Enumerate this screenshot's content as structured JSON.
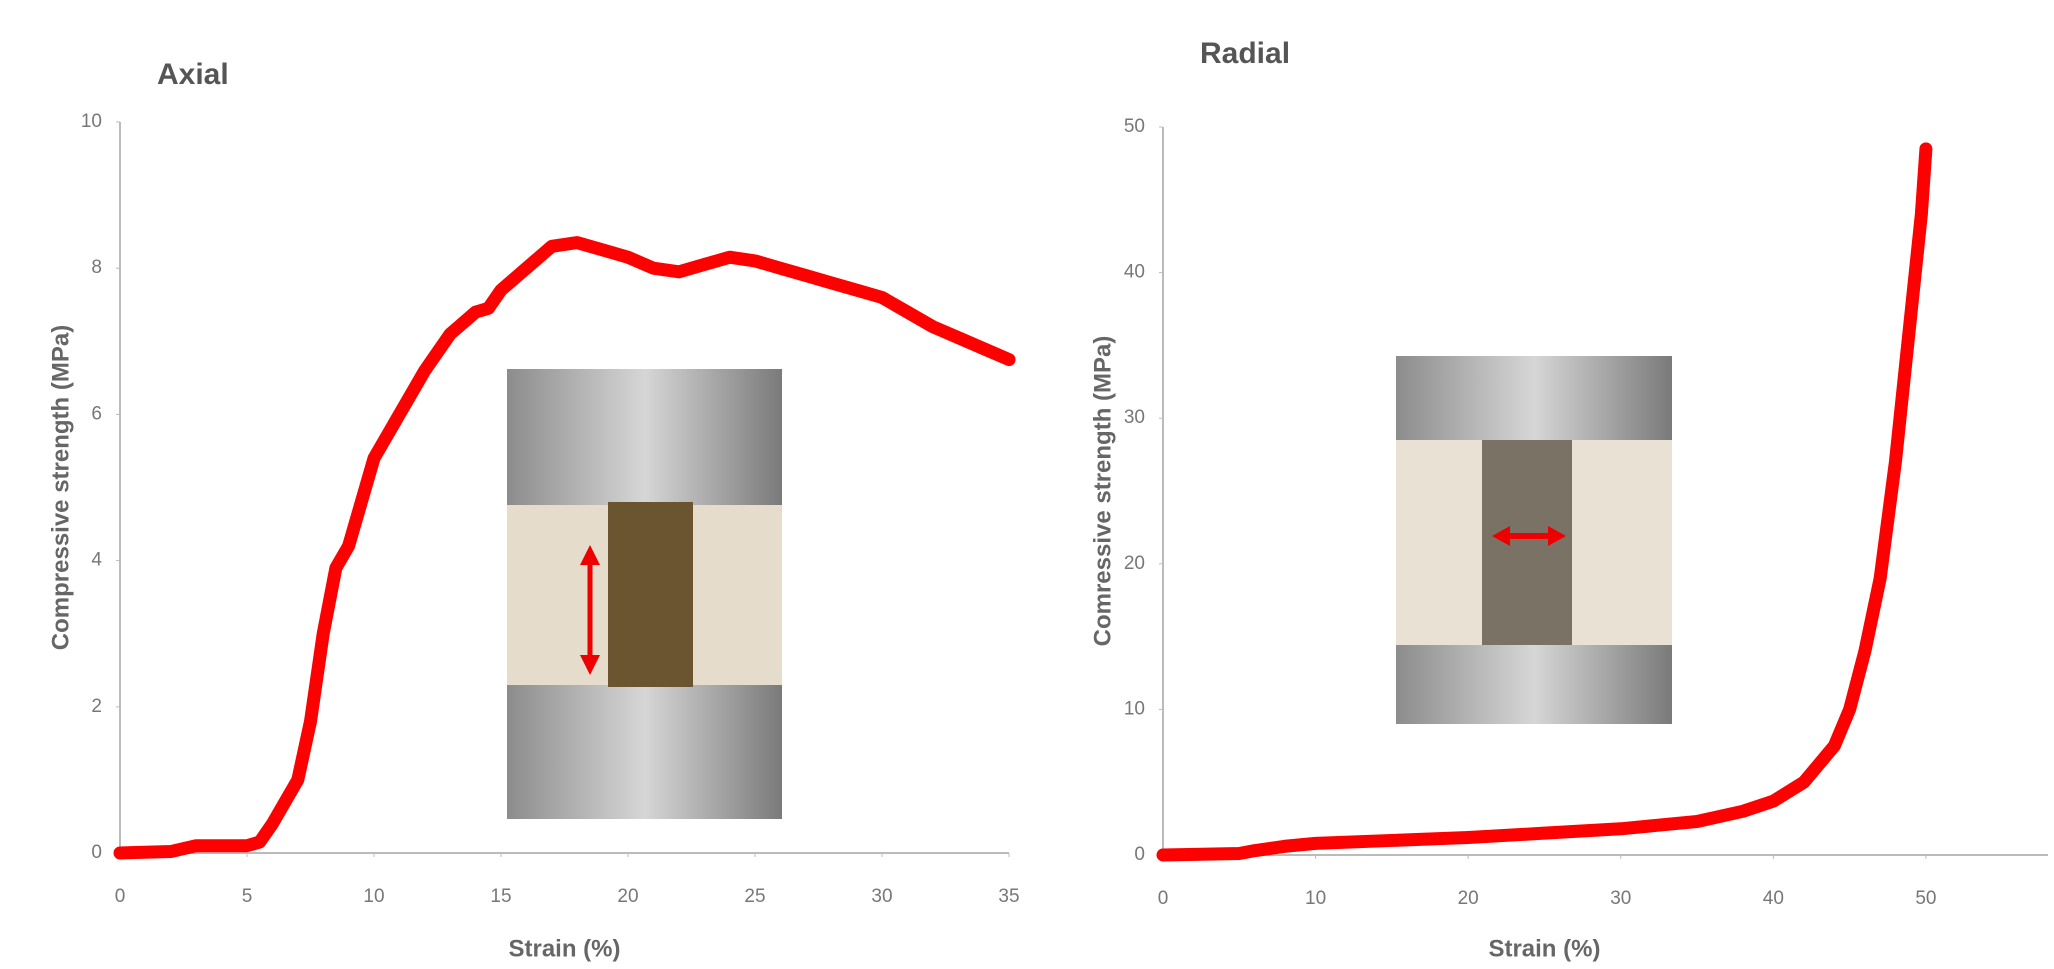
{
  "chart_data": [
    {
      "type": "line",
      "title": "Axial",
      "x_label": "Strain (%)",
      "y_label": "Compressive strength (MPa)",
      "x": [
        0,
        2,
        3,
        5,
        5.5,
        6,
        7,
        7.5,
        8,
        8.5,
        9,
        10,
        11,
        12,
        13,
        14,
        14.5,
        15,
        16,
        17,
        18,
        19,
        20,
        21,
        22,
        23,
        24,
        25,
        26,
        27,
        28,
        29,
        30,
        31,
        32,
        33,
        34,
        35
      ],
      "series": [
        {
          "color": "#ff0000",
          "values": [
            0,
            0.02,
            0.1,
            0.1,
            0.15,
            0.4,
            1.0,
            1.8,
            3.0,
            3.9,
            4.2,
            5.4,
            6.0,
            6.6,
            7.1,
            7.4,
            7.45,
            7.7,
            8.0,
            8.3,
            8.35,
            8.25,
            8.15,
            8.0,
            7.95,
            8.05,
            8.15,
            8.1,
            8.0,
            7.9,
            7.8,
            7.7,
            7.6,
            7.4,
            7.2,
            7.05,
            6.9,
            6.75
          ]
        }
      ],
      "xlim": [
        0,
        35
      ],
      "xticks": [
        0,
        5,
        10,
        15,
        20,
        25,
        30,
        35
      ],
      "ylim": [
        0,
        10
      ],
      "yticks": [
        0,
        2,
        4,
        6,
        8,
        10
      ],
      "grid": false
    },
    {
      "type": "line",
      "title": "Radial",
      "x_label": "Strain (%)",
      "y_label": "Comressive strength (MPa)",
      "x": [
        0,
        5,
        6,
        8,
        10,
        15,
        20,
        25,
        30,
        35,
        38,
        40,
        42,
        44,
        45,
        46,
        47,
        48,
        49,
        49.7,
        50
      ],
      "series": [
        {
          "color": "#ff0000",
          "values": [
            0,
            0.1,
            0.3,
            0.6,
            0.8,
            1.0,
            1.2,
            1.5,
            1.8,
            2.3,
            3.0,
            3.7,
            5.0,
            7.5,
            10,
            14,
            19,
            27,
            37,
            44,
            48.5
          ]
        }
      ],
      "xlim": [
        0,
        58
      ],
      "xticks": [
        0,
        10,
        20,
        30,
        40,
        50
      ],
      "ylim": [
        0,
        50
      ],
      "yticks": [
        0,
        10,
        20,
        30,
        40,
        50
      ],
      "grid": false
    }
  ]
}
